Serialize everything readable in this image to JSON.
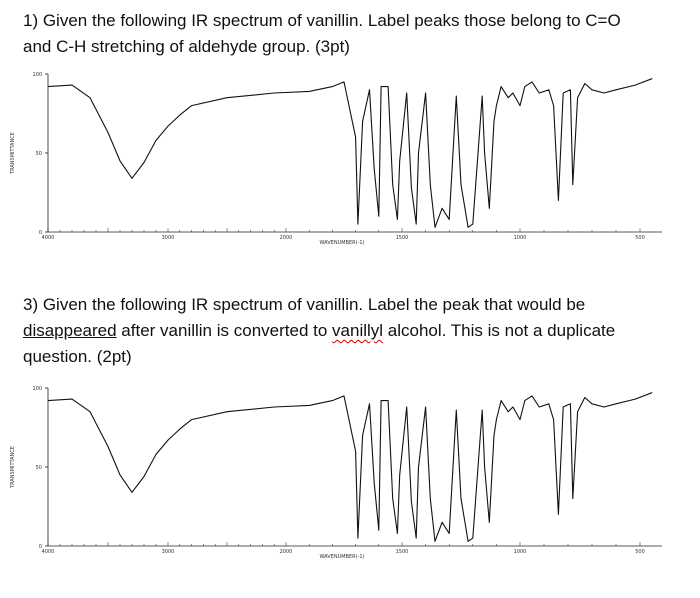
{
  "q1": {
    "line1": "1) Given the following IR spectrum of vanillin. Label peaks those belong to C=O",
    "line2": "and C-H stretching of aldehyde group. (3pt)"
  },
  "q3": {
    "line1": "3) Given the following IR spectrum of vanillin. Label the peak that would be",
    "line2_u": "disappeared",
    "line2_a": " after vanillin is converted to ",
    "line2_sq": "vanillyl",
    "line2_b": " alcohol. This is not a duplicate",
    "line3": "question. (2pt)"
  },
  "spectrum": {
    "y_axis_label": "TRANSMITTANCE",
    "y_ticks": [
      "100",
      "50",
      "0"
    ],
    "x_ticks": [
      "4000",
      "3000",
      "2000",
      "1500",
      "1000",
      "500"
    ],
    "x_axis_label": "WAVENUMBER(-1)"
  },
  "chart_data": [
    {
      "type": "line",
      "xlabel": "WAVENUMBER(-1)",
      "ylabel": "TRANSMITTANCE",
      "xlim": [
        4000,
        450
      ],
      "ylim": [
        0,
        100
      ],
      "series": [
        {
          "x": [
            4000,
            3800,
            3650,
            3500,
            3400,
            3300,
            3200,
            3100,
            3000,
            2900,
            2800,
            2500,
            2100,
            1900,
            1800,
            1750,
            1700,
            1690,
            1670,
            1640,
            1620,
            1600,
            1590,
            1560,
            1540,
            1520,
            1510,
            1480,
            1460,
            1440,
            1430,
            1400,
            1380,
            1360,
            1330,
            1300,
            1280,
            1270,
            1250,
            1220,
            1200,
            1160,
            1150,
            1130,
            1110,
            1100,
            1080,
            1050,
            1030,
            1000,
            980,
            950,
            920,
            880,
            860,
            840,
            820,
            790,
            780,
            760,
            730,
            700,
            650,
            600,
            520,
            450
          ],
          "y": [
            92,
            93,
            85,
            63,
            45,
            34,
            44,
            58,
            67,
            74,
            80,
            85,
            88,
            89,
            92,
            95,
            60,
            5,
            70,
            90,
            40,
            10,
            92,
            92,
            30,
            8,
            45,
            88,
            28,
            5,
            50,
            88,
            30,
            3,
            15,
            8,
            60,
            86,
            30,
            3,
            5,
            86,
            50,
            15,
            70,
            80,
            92,
            85,
            88,
            80,
            92,
            95,
            88,
            90,
            80,
            20,
            88,
            90,
            30,
            85,
            94,
            90,
            88,
            90,
            93,
            97
          ]
        }
      ]
    }
  ]
}
